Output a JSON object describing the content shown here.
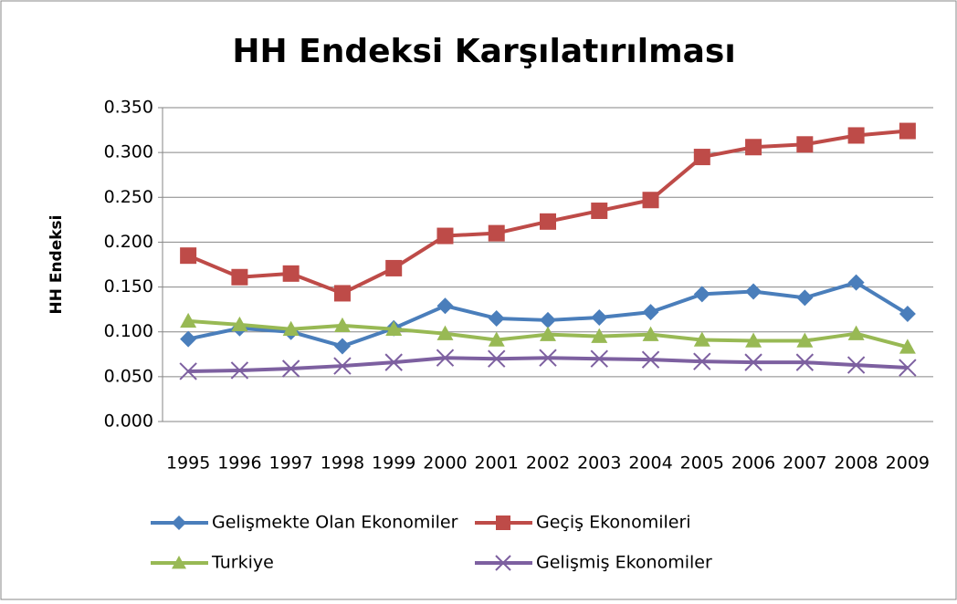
{
  "chart_data": {
    "type": "line",
    "title": "HH Endeksi Karşılatırılması",
    "y_label": "HH Endeksi",
    "categories": [
      "1995",
      "1996",
      "1997",
      "1998",
      "1999",
      "2000",
      "2001",
      "2002",
      "2003",
      "2004",
      "2005",
      "2006",
      "2007",
      "2008",
      "2009"
    ],
    "series": [
      {
        "name": "Gelişmekte Olan Ekonomiler",
        "color": "#4a7ebb",
        "marker": "diamond",
        "values": [
          0.092,
          0.104,
          0.1,
          0.084,
          0.104,
          0.129,
          0.115,
          0.113,
          0.116,
          0.122,
          0.142,
          0.145,
          0.138,
          0.155,
          0.12
        ]
      },
      {
        "name": "Geçiş Ekonomileri",
        "color": "#be4b48",
        "marker": "square",
        "values": [
          0.185,
          0.161,
          0.165,
          0.143,
          0.171,
          0.207,
          0.21,
          0.223,
          0.235,
          0.247,
          0.295,
          0.306,
          0.309,
          0.319,
          0.324
        ]
      },
      {
        "name": "Turkiye",
        "color": "#98b954",
        "marker": "triangle",
        "values": [
          0.112,
          0.108,
          0.103,
          0.107,
          0.103,
          0.098,
          0.091,
          0.097,
          0.095,
          0.097,
          0.091,
          0.09,
          0.09,
          0.098,
          0.083
        ]
      },
      {
        "name": "Gelişmiş Ekonomiler",
        "color": "#7d60a0",
        "marker": "x",
        "values": [
          0.056,
          0.057,
          0.059,
          0.062,
          0.066,
          0.071,
          0.07,
          0.071,
          0.07,
          0.069,
          0.067,
          0.066,
          0.066,
          0.063,
          0.06
        ]
      }
    ],
    "ylim": [
      0,
      0.35
    ],
    "yticks": [
      {
        "value": 0,
        "label": "0.000"
      },
      {
        "value": 0.05,
        "label": "0.050"
      },
      {
        "value": 0.1,
        "label": "0.100"
      },
      {
        "value": 0.15,
        "label": "0.150"
      },
      {
        "value": 0.2,
        "label": "0.200"
      },
      {
        "value": 0.25,
        "label": "0.250"
      },
      {
        "value": 0.3,
        "label": "0.300"
      },
      {
        "value": 0.35,
        "label": "0.350"
      }
    ],
    "grid": true,
    "legend": "bottom"
  }
}
